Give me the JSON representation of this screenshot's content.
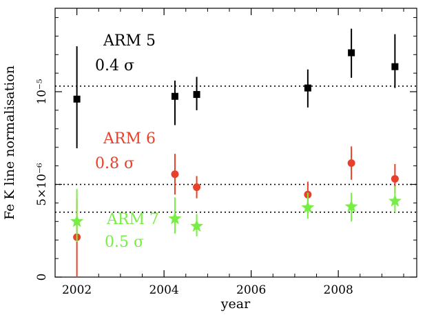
{
  "chart_data": {
    "type": "scatter",
    "xlabel": "year",
    "ylabel": "Fe K line normalisation",
    "xlim": [
      2001.5,
      2009.8
    ],
    "ylim": [
      0,
      1.45e-05
    ],
    "x_ticks": [
      {
        "value": 2002,
        "label": "2002"
      },
      {
        "value": 2004,
        "label": "2004"
      },
      {
        "value": 2006,
        "label": "2006"
      },
      {
        "value": 2008,
        "label": "2008"
      }
    ],
    "y_ticks": [
      {
        "value": 0,
        "label": "0"
      },
      {
        "value": 5e-06,
        "label": "5×10⁻⁶"
      },
      {
        "value": 1e-05,
        "label": "10⁻⁵"
      }
    ],
    "series": [
      {
        "color": "#000000",
        "marker": "square",
        "mean": 1.03e-05,
        "points": [
          {
            "x": 2002.0,
            "y": 9.6e-06,
            "ylo": 6.95e-06,
            "yhi": 1.245e-05
          },
          {
            "x": 2004.25,
            "y": 9.75e-06,
            "ylo": 8.2e-06,
            "yhi": 1.06e-05
          },
          {
            "x": 2004.75,
            "y": 9.85e-06,
            "ylo": 9e-06,
            "yhi": 1.08e-05
          },
          {
            "x": 2007.3,
            "y": 1.02e-05,
            "ylo": 9.15e-06,
            "yhi": 1.12e-05
          },
          {
            "x": 2008.3,
            "y": 1.21e-05,
            "ylo": 1.075e-05,
            "yhi": 1.34e-05
          },
          {
            "x": 2009.3,
            "y": 1.135e-05,
            "ylo": 1.02e-05,
            "yhi": 1.31e-05
          }
        ]
      },
      {
        "color": "#e8402a",
        "marker": "circle",
        "mean": 5e-06,
        "points": [
          {
            "x": 2002.0,
            "y": 2.15e-06,
            "ylo": 0.0,
            "yhi": 4.2e-06
          },
          {
            "x": 2004.25,
            "y": 5.55e-06,
            "ylo": 4.45e-06,
            "yhi": 6.65e-06
          },
          {
            "x": 2004.75,
            "y": 4.85e-06,
            "ylo": 4.25e-06,
            "yhi": 5.45e-06
          },
          {
            "x": 2007.3,
            "y": 4.45e-06,
            "ylo": 3.75e-06,
            "yhi": 5.15e-06
          },
          {
            "x": 2008.3,
            "y": 6.15e-06,
            "ylo": 5.25e-06,
            "yhi": 7.05e-06
          },
          {
            "x": 2009.3,
            "y": 5.3e-06,
            "ylo": 4.55e-06,
            "yhi": 6.1e-06
          }
        ]
      },
      {
        "color": "#77ee44",
        "marker": "star",
        "mean": 3.5e-06,
        "points": [
          {
            "x": 2002.0,
            "y": 3e-06,
            "ylo": 1.9e-06,
            "yhi": 4.75e-06
          },
          {
            "x": 2004.25,
            "y": 3.15e-06,
            "ylo": 2.35e-06,
            "yhi": 4.3e-06
          },
          {
            "x": 2004.75,
            "y": 2.75e-06,
            "ylo": 2.2e-06,
            "yhi": 3.4e-06
          },
          {
            "x": 2007.3,
            "y": 3.75e-06,
            "ylo": 3.15e-06,
            "yhi": 4.55e-06
          },
          {
            "x": 2008.3,
            "y": 3.8e-06,
            "ylo": 3e-06,
            "yhi": 4.55e-06
          },
          {
            "x": 2009.3,
            "y": 4.1e-06,
            "ylo": 3.5e-06,
            "yhi": 4.9e-06
          }
        ]
      }
    ],
    "annotations": [
      {
        "title": "ARM 5",
        "sub": "0.4 σ",
        "color": "#000000"
      },
      {
        "title": "ARM 6",
        "sub": "0.8 σ",
        "color": "#e8402a"
      },
      {
        "title": "ARM 7",
        "sub": "0.5 σ",
        "color": "#77ee44"
      }
    ],
    "grid": false,
    "legend": "none"
  }
}
